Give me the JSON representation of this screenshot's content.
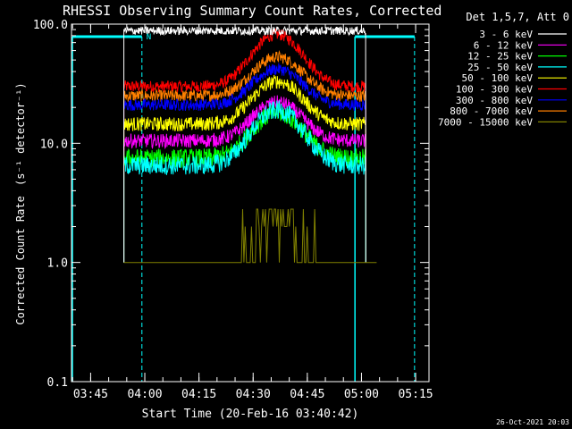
{
  "chart_data": {
    "type": "line",
    "title": "RHESSI Observing Summary Count Rates, Corrected",
    "xlabel": "Start Time (20-Feb-16 03:40:42)",
    "ylabel": "Corrected Count Rate",
    "ylabel_superscript_note": "(s⁻¹ detector⁻¹)",
    "yscale": "log",
    "ylim": [
      0.1,
      100
    ],
    "y_ticks": [
      "100.0",
      "10.0",
      "1.0",
      "0.1"
    ],
    "x_range_minutes": [
      -1,
      98
    ],
    "x_ticks": [
      {
        "label": "03:45",
        "min": 4.3
      },
      {
        "label": "04:00",
        "min": 19.3
      },
      {
        "label": "04:15",
        "min": 34.3
      },
      {
        "label": "04:30",
        "min": 49.3
      },
      {
        "label": "04:45",
        "min": 64.3
      },
      {
        "label": "05:00",
        "min": 79.3
      },
      {
        "label": "05:15",
        "min": 94.3
      }
    ],
    "legend_header": "Det 1,5,7, Att 0",
    "series": [
      {
        "name": "3 - 6 keV",
        "color": "#ffffff",
        "base": 88,
        "peak": 88,
        "noise": 0.035
      },
      {
        "name": "6 - 12 keV",
        "color": "#ff00ff",
        "base": 10.5,
        "peak": 22,
        "noise": 0.06
      },
      {
        "name": "12 - 25 keV",
        "color": "#00ff00",
        "base": 7.5,
        "peak": 18,
        "noise": 0.08
      },
      {
        "name": "25 - 50 keV",
        "color": "#00ffff",
        "base": 6.5,
        "peak": 19,
        "noise": 0.08
      },
      {
        "name": "50 - 100 keV",
        "color": "#ffff00",
        "base": 14.5,
        "peak": 33,
        "noise": 0.06
      },
      {
        "name": "100 - 300 keV",
        "color": "#ff0000",
        "base": 30,
        "peak": 82,
        "noise": 0.05
      },
      {
        "name": "300 - 800 keV",
        "color": "#0000ff",
        "base": 21,
        "peak": 42,
        "noise": 0.05
      },
      {
        "name": "800 - 7000 keV",
        "color": "#ff8000",
        "base": 25,
        "peak": 53,
        "noise": 0.05
      },
      {
        "name": "7000 - 15000 keV",
        "color": "#808000",
        "base": 1.0,
        "peak": 2.8,
        "noise": 0.0
      }
    ],
    "data_window_minutes": [
      13.5,
      80.5
    ],
    "peak_minute": 56,
    "night_markers_minutes": [
      -1,
      18.5,
      77.5,
      94.0
    ],
    "flag_label": "N"
  },
  "footer": {
    "timestamp": "26-Oct-2021 20:03"
  }
}
